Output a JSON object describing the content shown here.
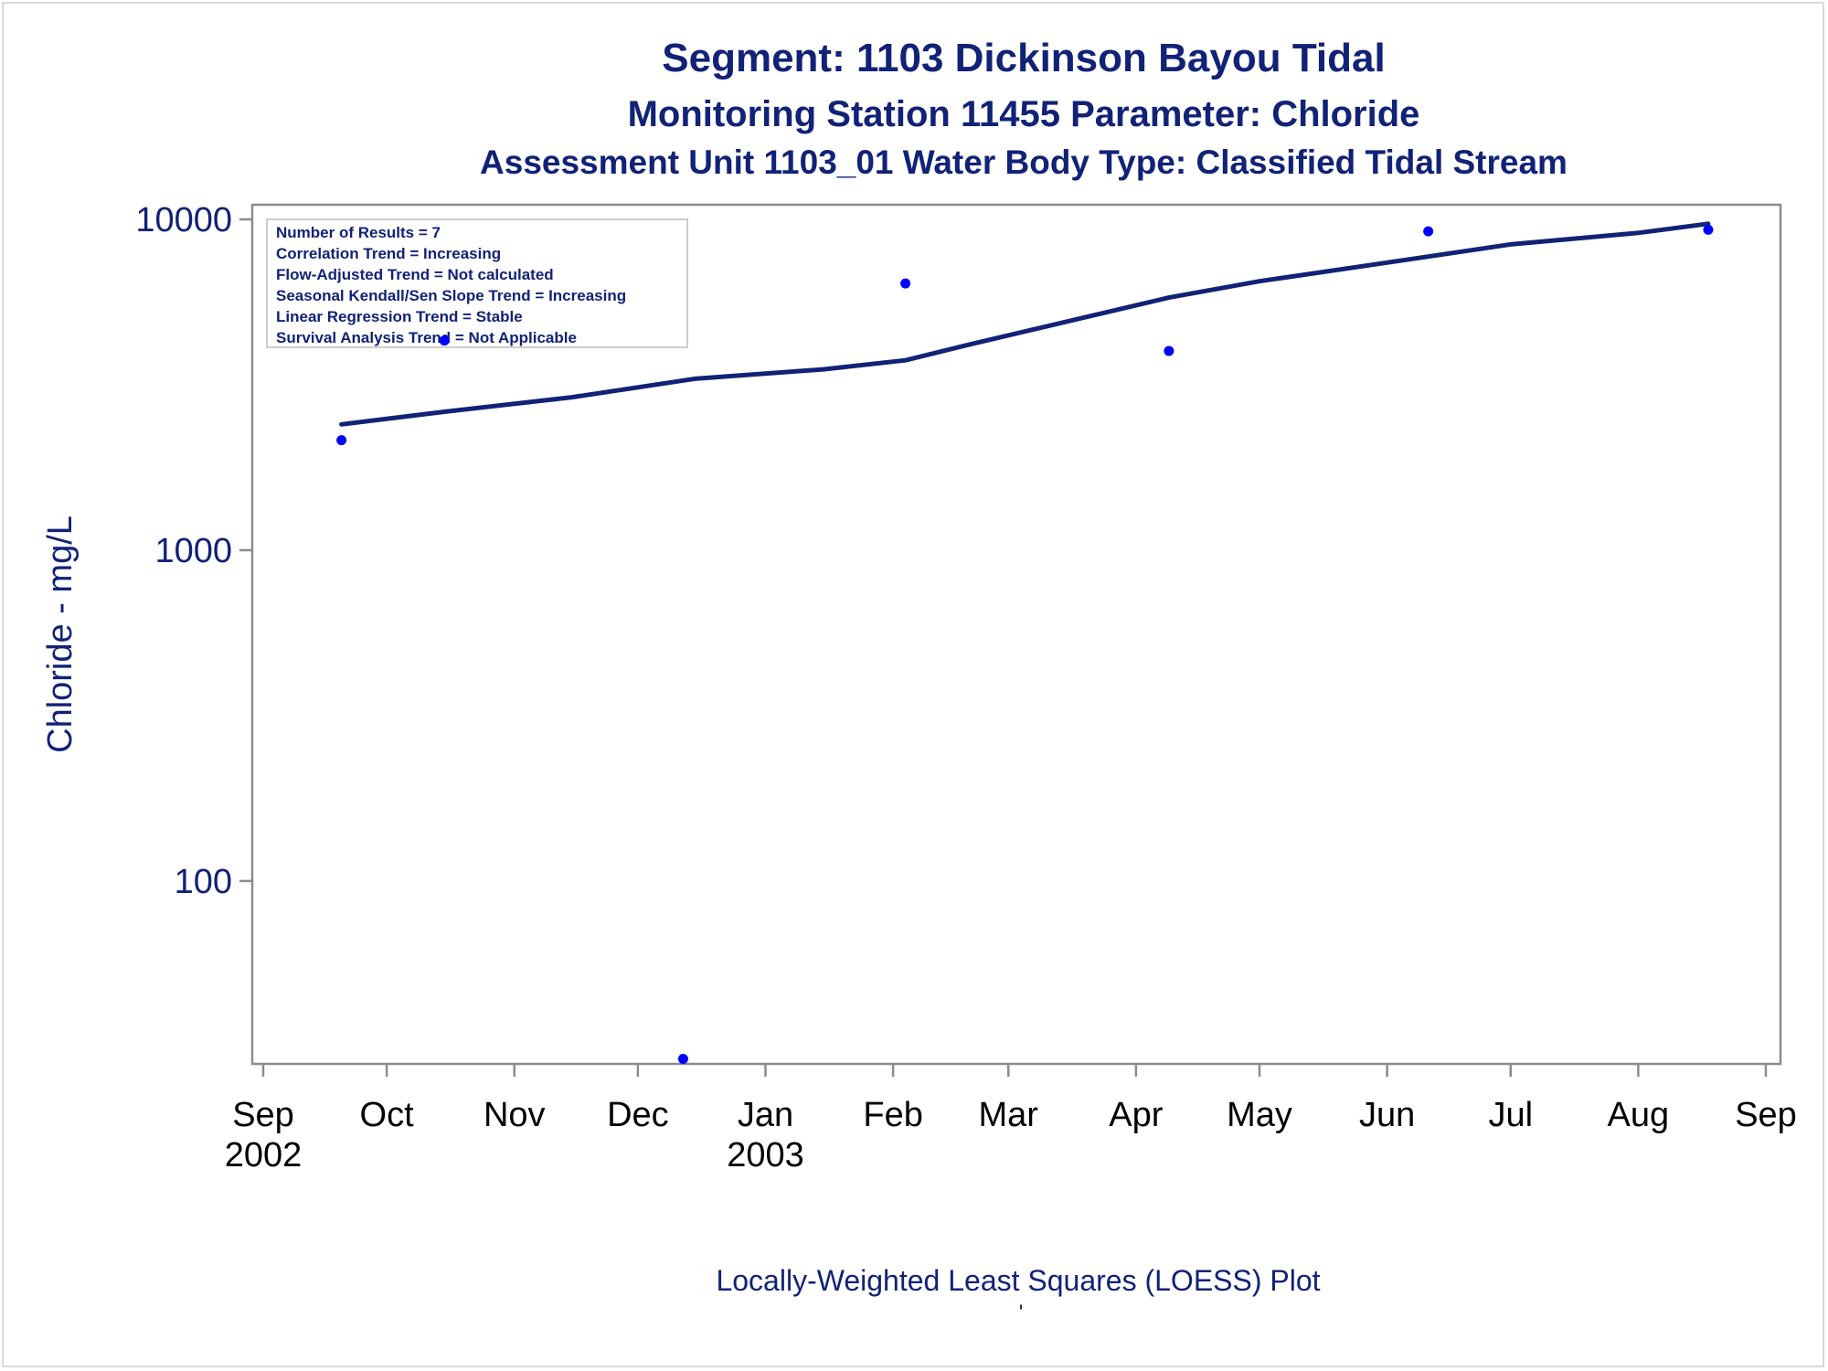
{
  "titles": {
    "line1": "Segment: 1103  Dickinson Bayou Tidal",
    "line2": "Monitoring Station 11455 Parameter: Chloride",
    "line3": "Assessment Unit 1103_01   Water Body Type: Classified Tidal Stream"
  },
  "annotations": [
    "Number of Results = 7",
    "Correlation Trend = Increasing",
    "Flow-Adjusted Trend = Not calculated",
    "Seasonal Kendall/Sen Slope Trend = Increasing",
    "Linear Regression Trend = Stable",
    "Survival Analysis Trend = Not Applicable"
  ],
  "footnote": "Locally-Weighted Least Squares (LOESS) Plot",
  "footnote_mark": "'",
  "colors": {
    "text": "#112277",
    "line": "#112277",
    "points": "#0000ff",
    "axis": "#8c8c8c"
  },
  "chart_data": {
    "type": "scatter",
    "ylabel": "Chloride - mg/L",
    "xlabel": "",
    "yscale": "log",
    "ylim": [
      28,
      10000
    ],
    "xlim": [
      "2002-09-01",
      "2003-09-01"
    ],
    "yticks": [
      {
        "value": 10000,
        "label": "10000"
      },
      {
        "value": 1000,
        "label": "1000"
      },
      {
        "value": 100,
        "label": "100"
      }
    ],
    "xticks": [
      {
        "date": "2002-09-01",
        "label": "Sep",
        "year": "2002"
      },
      {
        "date": "2002-10-01",
        "label": "Oct",
        "year": ""
      },
      {
        "date": "2002-11-01",
        "label": "Nov",
        "year": ""
      },
      {
        "date": "2002-12-01",
        "label": "Dec",
        "year": ""
      },
      {
        "date": "2003-01-01",
        "label": "Jan",
        "year": "2003"
      },
      {
        "date": "2003-02-01",
        "label": "Feb",
        "year": ""
      },
      {
        "date": "2003-03-01",
        "label": "Mar",
        "year": ""
      },
      {
        "date": "2003-04-01",
        "label": "Apr",
        "year": ""
      },
      {
        "date": "2003-05-01",
        "label": "May",
        "year": ""
      },
      {
        "date": "2003-06-01",
        "label": "Jun",
        "year": ""
      },
      {
        "date": "2003-07-01",
        "label": "Jul",
        "year": ""
      },
      {
        "date": "2003-08-01",
        "label": "Aug",
        "year": ""
      },
      {
        "date": "2003-09-01",
        "label": "Sep",
        "year": ""
      }
    ],
    "series": [
      {
        "type": "scatter",
        "points": [
          {
            "x": "2002-09-20",
            "y": 2150
          },
          {
            "x": "2002-10-15",
            "y": 4300
          },
          {
            "x": "2002-12-12",
            "y": 29
          },
          {
            "x": "2003-02-04",
            "y": 6400
          },
          {
            "x": "2003-04-09",
            "y": 4000
          },
          {
            "x": "2003-06-11",
            "y": 9200
          },
          {
            "x": "2003-08-18",
            "y": 9300
          }
        ]
      },
      {
        "type": "line",
        "points": [
          {
            "x": "2002-09-20",
            "y": 2400
          },
          {
            "x": "2002-10-15",
            "y": 2620
          },
          {
            "x": "2002-11-15",
            "y": 2900
          },
          {
            "x": "2002-12-15",
            "y": 3300
          },
          {
            "x": "2003-01-15",
            "y": 3520
          },
          {
            "x": "2003-02-04",
            "y": 3750
          },
          {
            "x": "2003-02-20",
            "y": 4200
          },
          {
            "x": "2003-03-15",
            "y": 4900
          },
          {
            "x": "2003-04-09",
            "y": 5800
          },
          {
            "x": "2003-05-01",
            "y": 6500
          },
          {
            "x": "2003-06-01",
            "y": 7400
          },
          {
            "x": "2003-07-01",
            "y": 8400
          },
          {
            "x": "2003-08-01",
            "y": 9100
          },
          {
            "x": "2003-08-18",
            "y": 9700
          }
        ]
      }
    ]
  }
}
